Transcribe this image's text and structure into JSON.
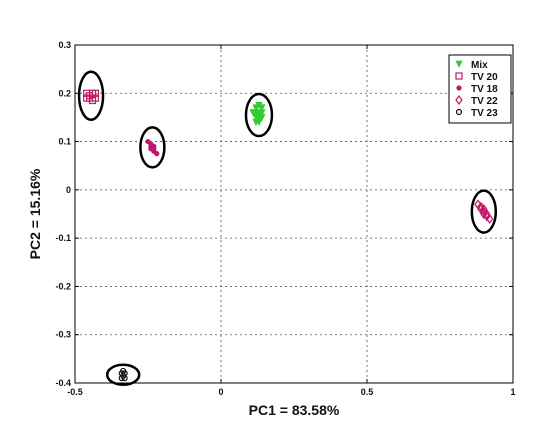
{
  "chart_data": {
    "type": "scatter",
    "xlabel": "PC1 = 83.58%",
    "ylabel": "PC2 = 15.16%",
    "xlim": [
      -0.5,
      1
    ],
    "ylim": [
      -0.4,
      0.3
    ],
    "x_ticks": [
      -0.5,
      0,
      0.5,
      1
    ],
    "x_tick_labels": [
      "-0.5",
      "0",
      "0.5",
      "1"
    ],
    "y_ticks": [
      0.3,
      0.2,
      0.1,
      0,
      -0.1,
      -0.2,
      -0.3,
      -0.4
    ],
    "y_tick_labels": [
      "0.3",
      "0.2",
      "0.1",
      "0",
      "-0.1",
      "-0.2",
      "-0.3",
      "-0.4"
    ],
    "grid": true,
    "legend_position": "top-right",
    "series": [
      {
        "name": "Mix",
        "marker": "triangle-down",
        "color": "#33cc33",
        "x": [
          0.11,
          0.12,
          0.13,
          0.14,
          0.13,
          0.12,
          0.14,
          0.13,
          0.12,
          0.13,
          0.14,
          0.12
        ],
        "y": [
          0.16,
          0.17,
          0.15,
          0.16,
          0.14,
          0.15,
          0.17,
          0.16,
          0.16,
          0.175,
          0.15,
          0.14
        ]
      },
      {
        "name": "TV 20",
        "marker": "square",
        "color": "#c0186a",
        "x": [
          -0.46,
          -0.45,
          -0.44,
          -0.43,
          -0.45,
          -0.44,
          -0.46,
          -0.43
        ],
        "y": [
          0.2,
          0.19,
          0.2,
          0.19,
          0.195,
          0.185,
          0.19,
          0.2
        ]
      },
      {
        "name": "TV 18",
        "marker": "star",
        "color": "#c0186a",
        "x": [
          -0.25,
          -0.24,
          -0.23,
          -0.24,
          -0.23,
          -0.22,
          -0.24,
          -0.23
        ],
        "y": [
          0.1,
          0.095,
          0.09,
          0.085,
          0.08,
          0.075,
          0.09,
          0.085
        ]
      },
      {
        "name": "TV 22",
        "marker": "diamond",
        "color": "#c0186a",
        "x": [
          0.88,
          0.89,
          0.9,
          0.91,
          0.9,
          0.91,
          0.92,
          0.89,
          0.9
        ],
        "y": [
          -0.03,
          -0.04,
          -0.045,
          -0.05,
          -0.04,
          -0.055,
          -0.06,
          -0.035,
          -0.05
        ]
      },
      {
        "name": "TV 23",
        "marker": "circle",
        "color": "#111111",
        "x": [
          -0.34,
          -0.335,
          -0.33,
          -0.34,
          -0.335,
          -0.33
        ],
        "y": [
          -0.38,
          -0.385,
          -0.38,
          -0.39,
          -0.375,
          -0.39
        ]
      }
    ],
    "annotations": [
      {
        "type": "ellipse",
        "center": [
          -0.445,
          0.195
        ]
      },
      {
        "type": "ellipse",
        "center": [
          -0.235,
          0.088
        ]
      },
      {
        "type": "ellipse",
        "center": [
          0.13,
          0.155
        ]
      },
      {
        "type": "ellipse",
        "center": [
          0.9,
          -0.045
        ]
      },
      {
        "type": "ellipse",
        "center": [
          -0.335,
          -0.383
        ]
      }
    ]
  }
}
